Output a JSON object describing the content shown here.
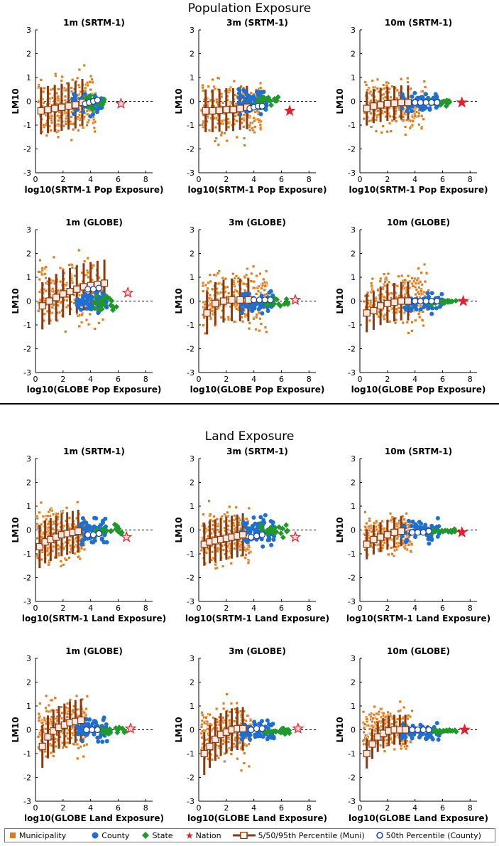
{
  "sections": {
    "population": {
      "title": "Population Exposure"
    },
    "land": {
      "title": "Land Exposure"
    }
  },
  "legend": {
    "municipality": "Municipality",
    "county": "County",
    "state": "State",
    "nation": "Nation",
    "percentile_muni": "5/50/95th Percentile (Muni)",
    "percentile_county": "50th Percentile (County)"
  },
  "colors": {
    "municipality": "#e07b1a",
    "county": "#1f6fce",
    "state": "#1f9a2a",
    "nation": "#e3202e",
    "percentile": "#8b3a10"
  },
  "chart_data": [
    {
      "id": "pop-srtm-1m",
      "type": "scatter",
      "section": "population",
      "title": "1m  (SRTM-1)",
      "xlabel": "log10(SRTM-1 Pop Exposure)",
      "ylabel": "LM10",
      "xlim": [
        0,
        8.5
      ],
      "ylim": [
        -3,
        3
      ],
      "xticks": [
        0,
        2,
        4,
        6,
        8
      ],
      "yticks": [
        -3,
        -2,
        -1,
        0,
        1,
        2,
        3
      ],
      "nation": {
        "x": 6.2,
        "y": -0.1,
        "filled": false
      },
      "muni_cloud": {
        "x_range": [
          0.2,
          4.4
        ],
        "y_spread": 1.1,
        "center": -0.2
      },
      "county_cloud": {
        "x_range": [
          2.6,
          4.9
        ],
        "y_spread": 0.45
      },
      "state_cloud": {
        "x_range": [
          3.6,
          5.0
        ],
        "y_spread": 0.3
      },
      "median_muni": [
        [
          0.4,
          -0.4
        ],
        [
          0.9,
          -0.35
        ],
        [
          1.4,
          -0.3
        ],
        [
          1.9,
          -0.25
        ],
        [
          2.4,
          -0.2
        ],
        [
          2.9,
          -0.15
        ],
        [
          3.4,
          -0.05
        ]
      ],
      "median_county": [
        [
          3.6,
          -0.1
        ],
        [
          3.9,
          -0.05
        ],
        [
          4.2,
          0
        ],
        [
          4.5,
          0.05
        ]
      ]
    },
    {
      "id": "pop-srtm-3m",
      "type": "scatter",
      "section": "population",
      "title": "3m  (SRTM-1)",
      "xlabel": "log10(SRTM-1 Pop Exposure)",
      "ylabel": "LM10",
      "xlim": [
        0,
        8.5
      ],
      "ylim": [
        -3,
        3
      ],
      "xticks": [
        0,
        2,
        4,
        6,
        8
      ],
      "yticks": [
        -3,
        -2,
        -1,
        0,
        1,
        2,
        3
      ],
      "nation": {
        "x": 6.6,
        "y": -0.4,
        "filled": true
      },
      "muni_cloud": {
        "x_range": [
          0.2,
          4.6
        ],
        "y_spread": 1.0,
        "center": -0.4
      },
      "county_cloud": {
        "x_range": [
          2.8,
          5.0
        ],
        "y_spread": 0.5
      },
      "state_cloud": {
        "x_range": [
          4.0,
          5.9
        ],
        "y_spread": 0.3
      },
      "median_muni": [
        [
          0.5,
          -0.4
        ],
        [
          1.0,
          -0.4
        ],
        [
          1.5,
          -0.38
        ],
        [
          2.0,
          -0.35
        ],
        [
          2.5,
          -0.35
        ],
        [
          3.0,
          -0.3
        ],
        [
          3.5,
          -0.25
        ]
      ],
      "median_county": [
        [
          3.7,
          -0.3
        ],
        [
          4.0,
          -0.25
        ],
        [
          4.3,
          -0.2
        ],
        [
          4.6,
          -0.2
        ]
      ]
    },
    {
      "id": "pop-srtm-10m",
      "type": "scatter",
      "section": "population",
      "title": "10m  (SRTM-1)",
      "xlabel": "log10(SRTM-1 Pop Exposure)",
      "ylabel": "LM10",
      "xlim": [
        0,
        8.5
      ],
      "ylim": [
        -3,
        3
      ],
      "xticks": [
        0,
        2,
        4,
        6,
        8
      ],
      "yticks": [
        -3,
        -2,
        -1,
        0,
        1,
        2,
        3
      ],
      "nation": {
        "x": 7.4,
        "y": -0.05,
        "filled": true
      },
      "muni_cloud": {
        "x_range": [
          0.3,
          4.8
        ],
        "y_spread": 0.8,
        "center": -0.2
      },
      "county_cloud": {
        "x_range": [
          3.0,
          5.8
        ],
        "y_spread": 0.35
      },
      "state_cloud": {
        "x_range": [
          5.0,
          6.8
        ],
        "y_spread": 0.1
      },
      "median_muni": [
        [
          0.5,
          -0.3
        ],
        [
          1.0,
          -0.2
        ],
        [
          1.5,
          -0.15
        ],
        [
          2.0,
          -0.1
        ],
        [
          2.5,
          -0.08
        ],
        [
          3.0,
          -0.05
        ],
        [
          3.5,
          -0.05
        ]
      ],
      "median_county": [
        [
          4.0,
          -0.05
        ],
        [
          4.4,
          -0.05
        ],
        [
          4.8,
          -0.05
        ],
        [
          5.2,
          -0.05
        ],
        [
          5.6,
          -0.05
        ]
      ]
    },
    {
      "id": "pop-globe-1m",
      "type": "scatter",
      "section": "population",
      "title": "1m  (GLOBE)",
      "xlabel": "log10(GLOBE Pop Exposure)",
      "ylabel": "LM10",
      "xlim": [
        0,
        8.5
      ],
      "ylim": [
        -3,
        3
      ],
      "xticks": [
        0,
        2,
        4,
        6,
        8
      ],
      "yticks": [
        -3,
        -2,
        -1,
        0,
        1,
        2,
        3
      ],
      "nation": {
        "x": 6.7,
        "y": 0.35,
        "filled": false
      },
      "muni_cloud": {
        "x_range": [
          0.2,
          5.0
        ],
        "y_spread": 1.1,
        "center": 0.3
      },
      "county_cloud": {
        "x_range": [
          3.0,
          5.3
        ],
        "y_spread": 0.45
      },
      "state_cloud": {
        "x_range": [
          4.2,
          6.0
        ],
        "y_spread": 0.3
      },
      "median_muni": [
        [
          0.5,
          -0.2
        ],
        [
          1.0,
          0.0
        ],
        [
          1.5,
          0.15
        ],
        [
          2.0,
          0.3
        ],
        [
          2.5,
          0.4
        ],
        [
          3.0,
          0.5
        ],
        [
          3.5,
          0.6
        ],
        [
          4.0,
          0.65
        ],
        [
          4.5,
          0.7
        ],
        [
          5.0,
          0.75
        ]
      ],
      "median_county": [
        [
          3.8,
          0.5
        ],
        [
          4.2,
          0.5
        ],
        [
          4.6,
          0.55
        ]
      ]
    },
    {
      "id": "pop-globe-3m",
      "type": "scatter",
      "section": "population",
      "title": "3m  (GLOBE)",
      "xlabel": "log10(GLOBE Pop Exposure)",
      "ylabel": "LM10",
      "xlim": [
        0,
        8.5
      ],
      "ylim": [
        -3,
        3
      ],
      "xticks": [
        0,
        2,
        4,
        6,
        8
      ],
      "yticks": [
        -3,
        -2,
        -1,
        0,
        1,
        2,
        3
      ],
      "nation": {
        "x": 7.0,
        "y": 0.05,
        "filled": false
      },
      "muni_cloud": {
        "x_range": [
          0.3,
          5.0
        ],
        "y_spread": 1.0,
        "center": 0.1
      },
      "county_cloud": {
        "x_range": [
          3.0,
          5.5
        ],
        "y_spread": 0.4
      },
      "state_cloud": {
        "x_range": [
          4.5,
          6.6
        ],
        "y_spread": 0.2
      },
      "median_muni": [
        [
          0.6,
          -0.5
        ],
        [
          1.2,
          -0.1
        ],
        [
          1.8,
          0.0
        ],
        [
          2.4,
          0.05
        ],
        [
          3.0,
          0.05
        ],
        [
          3.6,
          0.05
        ]
      ],
      "median_county": [
        [
          4.0,
          0.05
        ],
        [
          4.4,
          0.05
        ],
        [
          4.8,
          0.05
        ],
        [
          5.2,
          0.05
        ]
      ]
    },
    {
      "id": "pop-globe-10m",
      "type": "scatter",
      "section": "population",
      "title": "10m  (GLOBE)",
      "xlabel": "log10(GLOBE Pop Exposure)",
      "ylabel": "LM10",
      "xlim": [
        0,
        8.5
      ],
      "ylim": [
        -3,
        3
      ],
      "xticks": [
        0,
        2,
        4,
        6,
        8
      ],
      "yticks": [
        -3,
        -2,
        -1,
        0,
        1,
        2,
        3
      ],
      "nation": {
        "x": 7.5,
        "y": 0.0,
        "filled": true
      },
      "muni_cloud": {
        "x_range": [
          0.3,
          5.0
        ],
        "y_spread": 0.9,
        "center": 0.1
      },
      "county_cloud": {
        "x_range": [
          3.2,
          6.0
        ],
        "y_spread": 0.35
      },
      "state_cloud": {
        "x_range": [
          5.0,
          7.0
        ],
        "y_spread": 0.08
      },
      "median_muni": [
        [
          0.5,
          -0.5
        ],
        [
          1.0,
          -0.4
        ],
        [
          1.5,
          -0.2
        ],
        [
          2.0,
          -0.1
        ],
        [
          2.5,
          -0.05
        ],
        [
          3.0,
          0.0
        ],
        [
          3.5,
          0.0
        ]
      ],
      "median_county": [
        [
          4.0,
          0.0
        ],
        [
          4.4,
          0.0
        ],
        [
          4.8,
          0.0
        ],
        [
          5.2,
          0.0
        ],
        [
          5.6,
          0.0
        ]
      ]
    },
    {
      "id": "land-srtm-1m",
      "type": "scatter",
      "section": "land",
      "title": "1m  (SRTM-1)",
      "xlabel": "log10(SRTM-1 Land Exposure)",
      "ylabel": "LM10",
      "xlim": [
        0,
        8.5
      ],
      "ylim": [
        -3,
        3
      ],
      "xticks": [
        0,
        2,
        4,
        6,
        8
      ],
      "yticks": [
        -3,
        -2,
        -1,
        0,
        1,
        2,
        3
      ],
      "nation": {
        "x": 6.6,
        "y": -0.3,
        "filled": false
      },
      "muni_cloud": {
        "x_range": [
          0.1,
          3.6
        ],
        "y_spread": 1.0,
        "center": -0.2
      },
      "county_cloud": {
        "x_range": [
          3.0,
          5.2
        ],
        "y_spread": 0.5
      },
      "state_cloud": {
        "x_range": [
          4.0,
          6.3
        ],
        "y_spread": 0.3
      },
      "median_muni": [
        [
          0.3,
          -0.7
        ],
        [
          0.7,
          -0.5
        ],
        [
          1.1,
          -0.4
        ],
        [
          1.5,
          -0.3
        ],
        [
          1.9,
          -0.2
        ],
        [
          2.3,
          -0.15
        ],
        [
          2.7,
          -0.1
        ],
        [
          3.1,
          -0.05
        ]
      ],
      "median_county": [
        [
          3.8,
          -0.2
        ],
        [
          4.2,
          -0.2
        ],
        [
          4.6,
          -0.15
        ]
      ]
    },
    {
      "id": "land-srtm-3m",
      "type": "scatter",
      "section": "land",
      "title": "3m  (SRTM-1)",
      "xlabel": "log10(SRTM-1 Land Exposure)",
      "ylabel": "LM10",
      "xlim": [
        0,
        8.5
      ],
      "ylim": [
        -3,
        3
      ],
      "xticks": [
        0,
        2,
        4,
        6,
        8
      ],
      "yticks": [
        -3,
        -2,
        -1,
        0,
        1,
        2,
        3
      ],
      "nation": {
        "x": 7.0,
        "y": -0.3,
        "filled": false
      },
      "muni_cloud": {
        "x_range": [
          0.2,
          3.8
        ],
        "y_spread": 1.0,
        "center": -0.3
      },
      "county_cloud": {
        "x_range": [
          3.0,
          5.5
        ],
        "y_spread": 0.5
      },
      "state_cloud": {
        "x_range": [
          4.5,
          6.5
        ],
        "y_spread": 0.25
      },
      "median_muni": [
        [
          0.4,
          -0.6
        ],
        [
          0.8,
          -0.5
        ],
        [
          1.2,
          -0.45
        ],
        [
          1.6,
          -0.4
        ],
        [
          2.0,
          -0.35
        ],
        [
          2.4,
          -0.3
        ],
        [
          2.8,
          -0.25
        ],
        [
          3.2,
          -0.2
        ]
      ],
      "median_county": [
        [
          3.8,
          -0.3
        ],
        [
          4.2,
          -0.25
        ],
        [
          4.6,
          -0.2
        ]
      ]
    },
    {
      "id": "land-srtm-10m",
      "type": "scatter",
      "section": "land",
      "title": "10m  (SRTM-1)",
      "xlabel": "log10(SRTM-1 Land Exposure)",
      "ylabel": "LM10",
      "xlim": [
        0,
        8.5
      ],
      "ylim": [
        -3,
        3
      ],
      "xticks": [
        0,
        2,
        4,
        6,
        8
      ],
      "yticks": [
        -3,
        -2,
        -1,
        0,
        1,
        2,
        3
      ],
      "nation": {
        "x": 7.4,
        "y": -0.1,
        "filled": true
      },
      "muni_cloud": {
        "x_range": [
          0.3,
          3.8
        ],
        "y_spread": 0.7,
        "center": -0.2
      },
      "county_cloud": {
        "x_range": [
          3.0,
          5.8
        ],
        "y_spread": 0.4
      },
      "state_cloud": {
        "x_range": [
          5.0,
          7.0
        ],
        "y_spread": 0.08
      },
      "median_muni": [
        [
          0.5,
          -0.6
        ],
        [
          1.0,
          -0.4
        ],
        [
          1.5,
          -0.3
        ],
        [
          2.0,
          -0.2
        ],
        [
          2.5,
          -0.1
        ],
        [
          3.0,
          -0.05
        ]
      ],
      "median_county": [
        [
          3.8,
          -0.1
        ],
        [
          4.2,
          -0.1
        ],
        [
          4.6,
          -0.1
        ],
        [
          5.0,
          -0.05
        ]
      ]
    },
    {
      "id": "land-globe-1m",
      "type": "scatter",
      "section": "land",
      "title": "1m  (GLOBE)",
      "xlabel": "log10(GLOBE Land Exposure)",
      "ylabel": "LM10",
      "xlim": [
        0,
        8.5
      ],
      "ylim": [
        -3,
        3
      ],
      "xticks": [
        0,
        2,
        4,
        6,
        8
      ],
      "yticks": [
        -3,
        -2,
        -1,
        0,
        1,
        2,
        3
      ],
      "nation": {
        "x": 6.9,
        "y": 0.05,
        "filled": false
      },
      "muni_cloud": {
        "x_range": [
          0.2,
          3.8
        ],
        "y_spread": 1.0,
        "center": 0.2
      },
      "county_cloud": {
        "x_range": [
          3.0,
          5.2
        ],
        "y_spread": 0.5
      },
      "state_cloud": {
        "x_range": [
          4.5,
          6.5
        ],
        "y_spread": 0.15
      },
      "median_muni": [
        [
          0.5,
          -0.7
        ],
        [
          0.9,
          -0.3
        ],
        [
          1.3,
          -0.05
        ],
        [
          1.7,
          0.1
        ],
        [
          2.1,
          0.2
        ],
        [
          2.5,
          0.3
        ],
        [
          2.9,
          0.35
        ],
        [
          3.3,
          0.4
        ]
      ],
      "median_county": [
        [
          3.7,
          0.0
        ],
        [
          4.1,
          0.0
        ],
        [
          4.5,
          0.0
        ]
      ]
    },
    {
      "id": "land-globe-3m",
      "type": "scatter",
      "section": "land",
      "title": "3m  (GLOBE)",
      "xlabel": "log10(GLOBE Land Exposure)",
      "ylabel": "LM10",
      "xlim": [
        0,
        8.5
      ],
      "ylim": [
        -3,
        3
      ],
      "xticks": [
        0,
        2,
        4,
        6,
        8
      ],
      "yticks": [
        -3,
        -2,
        -1,
        0,
        1,
        2,
        3
      ],
      "nation": {
        "x": 7.2,
        "y": 0.05,
        "filled": false
      },
      "muni_cloud": {
        "x_range": [
          0.2,
          3.8
        ],
        "y_spread": 1.0,
        "center": -0.1
      },
      "county_cloud": {
        "x_range": [
          3.0,
          5.5
        ],
        "y_spread": 0.45
      },
      "state_cloud": {
        "x_range": [
          4.5,
          6.6
        ],
        "y_spread": 0.15
      },
      "median_muni": [
        [
          0.4,
          -1.0
        ],
        [
          0.8,
          -0.7
        ],
        [
          1.2,
          -0.4
        ],
        [
          1.6,
          -0.2
        ],
        [
          2.0,
          -0.1
        ],
        [
          2.4,
          0.0
        ],
        [
          2.8,
          0.05
        ],
        [
          3.2,
          0.05
        ]
      ],
      "median_county": [
        [
          3.8,
          0.0
        ],
        [
          4.2,
          0.05
        ],
        [
          4.6,
          0.05
        ]
      ]
    },
    {
      "id": "land-globe-10m",
      "type": "scatter",
      "section": "land",
      "title": "10m  (GLOBE)",
      "xlabel": "log10(GLOBE Land Exposure)",
      "ylabel": "LM10",
      "xlim": [
        0,
        8.5
      ],
      "ylim": [
        -3,
        3
      ],
      "xticks": [
        0,
        2,
        4,
        6,
        8
      ],
      "yticks": [
        -3,
        -2,
        -1,
        0,
        1,
        2,
        3
      ],
      "nation": {
        "x": 7.6,
        "y": 0.0,
        "filled": true
      },
      "muni_cloud": {
        "x_range": [
          0.2,
          3.8
        ],
        "y_spread": 0.7,
        "center": 0.0
      },
      "county_cloud": {
        "x_range": [
          3.0,
          5.8
        ],
        "y_spread": 0.35
      },
      "state_cloud": {
        "x_range": [
          5.2,
          7.0
        ],
        "y_spread": 0.05
      },
      "median_muni": [
        [
          0.5,
          -1.0
        ],
        [
          0.9,
          -0.6
        ],
        [
          1.3,
          -0.3
        ],
        [
          1.7,
          -0.15
        ],
        [
          2.1,
          -0.05
        ],
        [
          2.5,
          0.0
        ],
        [
          2.9,
          0.0
        ],
        [
          3.3,
          0.0
        ]
      ],
      "median_county": [
        [
          3.8,
          0.0
        ],
        [
          4.2,
          0.0
        ],
        [
          4.6,
          0.0
        ],
        [
          5.0,
          0.0
        ]
      ]
    }
  ]
}
